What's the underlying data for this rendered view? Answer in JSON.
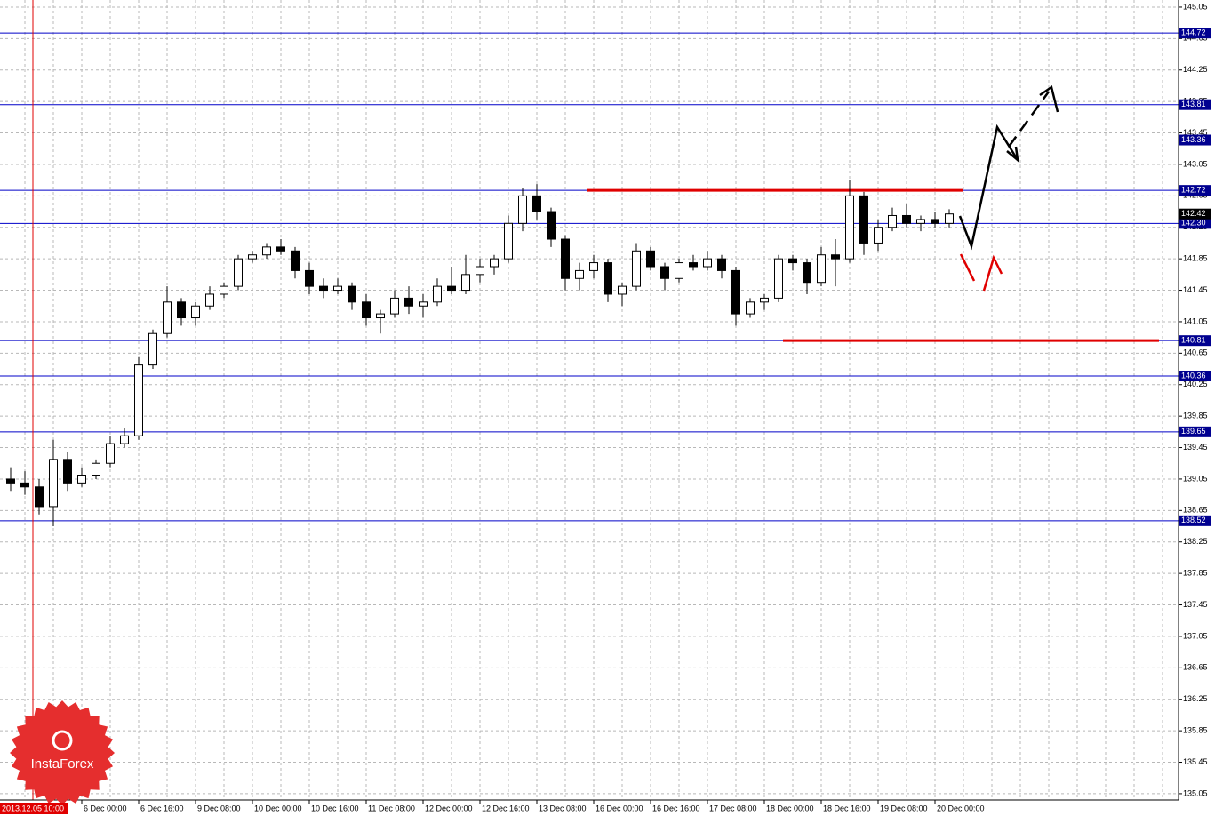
{
  "chart_data": {
    "type": "candlestick",
    "categories": [
      null,
      null,
      null,
      null,
      null,
      "6 Dec 00:00",
      null,
      null,
      null,
      "6 Dec 16:00",
      null,
      null,
      null,
      "9 Dec 08:00",
      null,
      null,
      null,
      "10 Dec 00:00",
      null,
      null,
      null,
      "10 Dec 16:00",
      null,
      null,
      null,
      "11 Dec 08:00",
      null,
      null,
      null,
      "12 Dec 00:00",
      null,
      null,
      null,
      "12 Dec 16:00",
      null,
      null,
      null,
      "13 Dec 08:00",
      null,
      null,
      null,
      "16 Dec 00:00",
      null,
      null,
      null,
      "16 Dec 16:00",
      null,
      null,
      null,
      "17 Dec 08:00",
      null,
      null,
      null,
      "18 Dec 00:00",
      null,
      null,
      null,
      "18 Dec 16:00",
      null,
      null,
      null,
      "19 Dec 08:00",
      null,
      null,
      null,
      "20 Dec 00:00",
      null
    ],
    "open": [
      139.05,
      139.0,
      138.95,
      138.7,
      139.3,
      139.0,
      139.1,
      139.25,
      139.5,
      139.6,
      140.5,
      140.9,
      141.3,
      141.1,
      141.25,
      141.4,
      141.5,
      141.85,
      141.9,
      142.0,
      141.95,
      141.7,
      141.5,
      141.45,
      141.5,
      141.3,
      141.1,
      141.15,
      141.35,
      141.25,
      141.3,
      141.5,
      141.45,
      141.65,
      141.75,
      141.85,
      142.3,
      142.65,
      142.45,
      142.1,
      141.6,
      141.7,
      141.8,
      141.4,
      141.5,
      141.95,
      141.75,
      141.6,
      141.8,
      141.75,
      141.85,
      141.7,
      141.15,
      141.3,
      141.35,
      141.85,
      141.8,
      141.55,
      141.9,
      141.85,
      142.65,
      142.05,
      142.25,
      142.4,
      142.3,
      142.35,
      142.3
    ],
    "high": [
      139.2,
      139.15,
      139.05,
      139.55,
      139.4,
      139.2,
      139.3,
      139.6,
      139.7,
      140.6,
      140.95,
      141.5,
      141.35,
      141.3,
      141.5,
      141.55,
      141.9,
      141.95,
      142.05,
      142.1,
      142.0,
      141.8,
      141.6,
      141.6,
      141.55,
      141.4,
      141.2,
      141.45,
      141.5,
      141.4,
      141.6,
      141.75,
      141.9,
      141.85,
      141.9,
      142.4,
      142.75,
      142.8,
      142.5,
      142.15,
      141.8,
      141.9,
      141.85,
      141.55,
      142.05,
      142.0,
      141.8,
      141.85,
      141.9,
      141.95,
      141.9,
      141.75,
      141.35,
      141.4,
      141.9,
      141.9,
      141.85,
      142.0,
      142.1,
      142.85,
      142.7,
      142.35,
      142.5,
      142.55,
      142.4,
      142.45,
      142.48
    ],
    "low": [
      138.9,
      138.85,
      138.6,
      138.45,
      138.9,
      138.95,
      139.05,
      139.2,
      139.45,
      139.55,
      140.45,
      140.85,
      141.0,
      141.0,
      141.2,
      141.35,
      141.45,
      141.8,
      141.85,
      141.9,
      141.6,
      141.4,
      141.35,
      141.4,
      141.2,
      141.0,
      140.9,
      141.1,
      141.15,
      141.1,
      141.25,
      141.4,
      141.4,
      141.55,
      141.65,
      141.8,
      142.2,
      142.35,
      142.0,
      141.45,
      141.45,
      141.6,
      141.3,
      141.25,
      141.45,
      141.7,
      141.45,
      141.55,
      141.7,
      141.7,
      141.6,
      141.0,
      141.1,
      141.2,
      141.3,
      141.7,
      141.4,
      141.5,
      141.5,
      141.8,
      141.9,
      141.95,
      142.2,
      142.25,
      142.2,
      142.25,
      142.25
    ],
    "close": [
      139.0,
      138.95,
      138.7,
      139.3,
      139.0,
      139.1,
      139.25,
      139.5,
      139.6,
      140.5,
      140.9,
      141.3,
      141.1,
      141.25,
      141.4,
      141.5,
      141.85,
      141.9,
      142.0,
      141.95,
      141.7,
      141.5,
      141.45,
      141.5,
      141.3,
      141.1,
      141.15,
      141.35,
      141.25,
      141.3,
      141.5,
      141.45,
      141.65,
      141.75,
      141.85,
      142.3,
      142.65,
      142.45,
      142.1,
      141.6,
      141.7,
      141.8,
      141.4,
      141.5,
      141.95,
      141.75,
      141.6,
      141.8,
      141.75,
      141.85,
      141.7,
      141.15,
      141.3,
      141.35,
      141.85,
      141.8,
      141.55,
      141.9,
      141.85,
      142.65,
      142.05,
      142.25,
      142.4,
      142.3,
      142.35,
      142.3,
      142.42
    ],
    "ylim": [
      134.97,
      145.14
    ],
    "yticks": [
      145.05,
      144.65,
      144.25,
      143.85,
      143.45,
      143.05,
      142.65,
      142.25,
      141.85,
      141.45,
      141.05,
      140.65,
      140.25,
      139.85,
      139.45,
      139.05,
      138.65,
      138.25,
      137.85,
      137.45,
      137.05,
      136.65,
      136.25,
      135.85,
      135.45,
      135.05
    ],
    "levels": [
      144.72,
      143.81,
      143.36,
      142.72,
      {
        "value": 142.3,
        "label": "142.30"
      },
      140.81,
      140.36,
      139.65,
      138.52
    ],
    "red_lines": [
      142.72,
      140.81
    ],
    "current_price": 142.42,
    "cursor_label": "2013.12.05 10:00",
    "logo": "InstaForex",
    "grid": true
  }
}
